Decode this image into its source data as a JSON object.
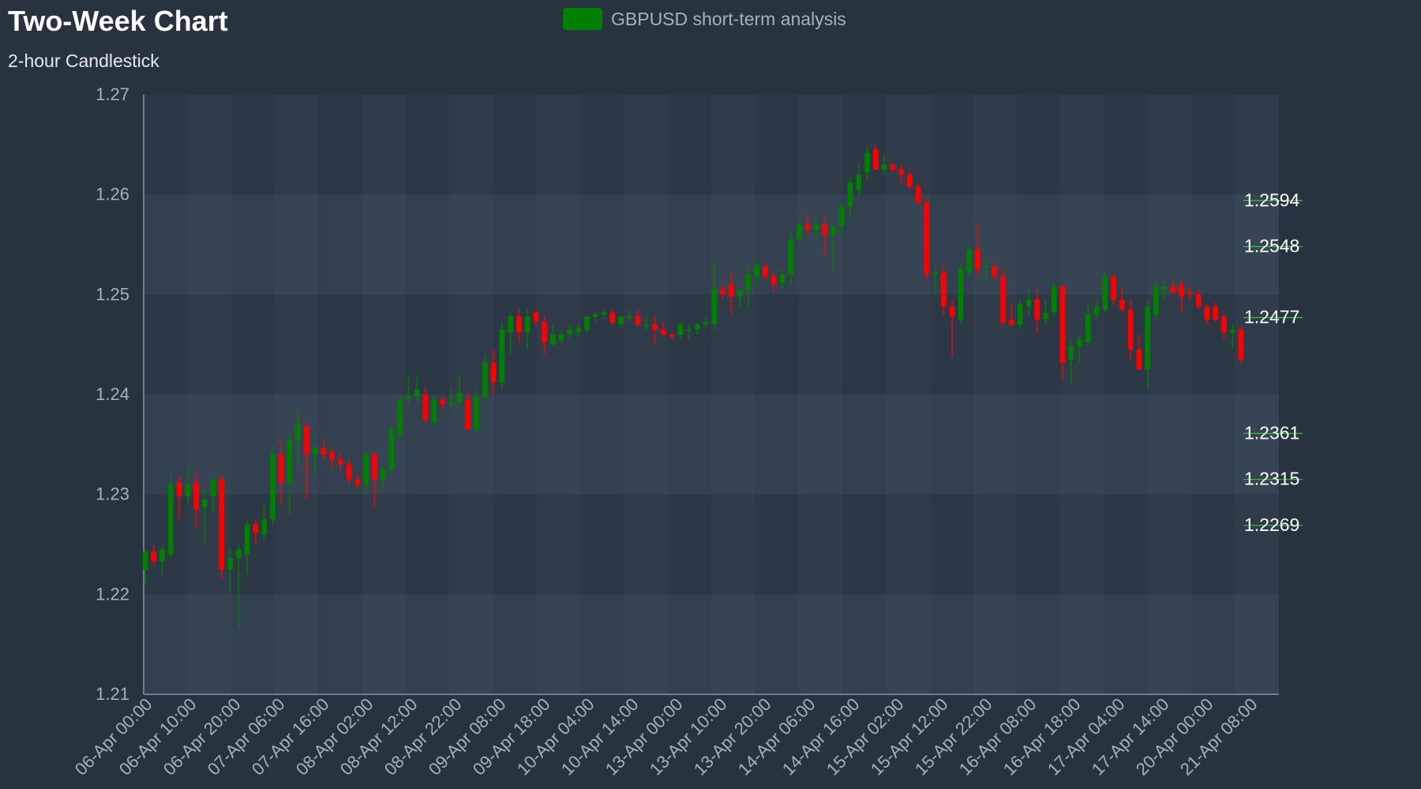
{
  "chart_data": {
    "type": "candlestick",
    "title": "Two-Week Chart",
    "subtitle": "2-hour Candlestick",
    "series_name": "GBPUSD short-term analysis",
    "ylim": [
      1.21,
      1.27
    ],
    "y_ticks": [
      "1.21",
      "1.22",
      "1.23",
      "1.24",
      "1.25",
      "1.26",
      "1.27"
    ],
    "x_tick_labels": [
      "06-Apr 00:00",
      "06-Apr 10:00",
      "06-Apr 20:00",
      "07-Apr 06:00",
      "07-Apr 16:00",
      "08-Apr 02:00",
      "08-Apr 12:00",
      "08-Apr 22:00",
      "09-Apr 08:00",
      "09-Apr 18:00",
      "10-Apr 04:00",
      "10-Apr 14:00",
      "13-Apr 00:00",
      "13-Apr 10:00",
      "13-Apr 20:00",
      "14-Apr 06:00",
      "14-Apr 16:00",
      "15-Apr 02:00",
      "15-Apr 12:00",
      "15-Apr 22:00",
      "16-Apr 08:00",
      "16-Apr 18:00",
      "17-Apr 04:00",
      "17-Apr 14:00",
      "20-Apr 00:00",
      "21-Apr 08:00"
    ],
    "levels": [
      {
        "label": "1.2594",
        "value": 1.2594
      },
      {
        "label": "1.2548",
        "value": 1.2548
      },
      {
        "label": "1.2477",
        "value": 1.2477
      },
      {
        "label": "1.2361",
        "value": 1.2361
      },
      {
        "label": "1.2315",
        "value": 1.2315
      },
      {
        "label": "1.2269",
        "value": 1.2269
      }
    ],
    "ohlc": [
      [
        1.2225,
        1.2245,
        1.221,
        1.2243
      ],
      [
        1.2243,
        1.225,
        1.2228,
        1.2233
      ],
      [
        1.2233,
        1.2248,
        1.2218,
        1.2245
      ],
      [
        1.224,
        1.232,
        1.2236,
        1.231
      ],
      [
        1.2312,
        1.2318,
        1.2275,
        1.2298
      ],
      [
        1.2298,
        1.2325,
        1.229,
        1.231
      ],
      [
        1.2312,
        1.2322,
        1.2265,
        1.2285
      ],
      [
        1.2287,
        1.2305,
        1.225,
        1.2295
      ],
      [
        1.2298,
        1.2318,
        1.228,
        1.2315
      ],
      [
        1.2315,
        1.232,
        1.2215,
        1.2225
      ],
      [
        1.2225,
        1.2245,
        1.22,
        1.2236
      ],
      [
        1.2236,
        1.225,
        1.2165,
        1.2245
      ],
      [
        1.224,
        1.2275,
        1.222,
        1.227
      ],
      [
        1.227,
        1.2275,
        1.225,
        1.2262
      ],
      [
        1.226,
        1.229,
        1.2255,
        1.2275
      ],
      [
        1.2275,
        1.235,
        1.2268,
        1.234
      ],
      [
        1.234,
        1.2352,
        1.229,
        1.2312
      ],
      [
        1.2312,
        1.236,
        1.228,
        1.2355
      ],
      [
        1.2355,
        1.2385,
        1.233,
        1.237
      ],
      [
        1.2368,
        1.2372,
        1.2295,
        1.234
      ],
      [
        1.234,
        1.2348,
        1.232,
        1.2347
      ],
      [
        1.2346,
        1.2355,
        1.2335,
        1.234
      ],
      [
        1.2342,
        1.2348,
        1.2325,
        1.2335
      ],
      [
        1.2335,
        1.2342,
        1.2322,
        1.233
      ],
      [
        1.233,
        1.2335,
        1.231,
        1.2315
      ],
      [
        1.2315,
        1.232,
        1.2305,
        1.231
      ],
      [
        1.231,
        1.2342,
        1.23,
        1.234
      ],
      [
        1.234,
        1.2343,
        1.2288,
        1.2315
      ],
      [
        1.2315,
        1.233,
        1.2305,
        1.2325
      ],
      [
        1.2325,
        1.237,
        1.232,
        1.2365
      ],
      [
        1.236,
        1.2398,
        1.2355,
        1.2395
      ],
      [
        1.2395,
        1.242,
        1.239,
        1.2398
      ],
      [
        1.2398,
        1.242,
        1.2392,
        1.2405
      ],
      [
        1.24,
        1.2408,
        1.237,
        1.2375
      ],
      [
        1.2372,
        1.2398,
        1.237,
        1.2395
      ],
      [
        1.2395,
        1.2398,
        1.2385,
        1.239
      ],
      [
        1.239,
        1.2405,
        1.2388,
        1.2392
      ],
      [
        1.2392,
        1.242,
        1.2385,
        1.2402
      ],
      [
        1.2395,
        1.2402,
        1.2365,
        1.2365
      ],
      [
        1.2365,
        1.2405,
        1.2362,
        1.2398
      ],
      [
        1.2398,
        1.244,
        1.2395,
        1.2432
      ],
      [
        1.2432,
        1.2445,
        1.24,
        1.2412
      ],
      [
        1.2412,
        1.2472,
        1.2405,
        1.2465
      ],
      [
        1.2462,
        1.2482,
        1.244,
        1.2478
      ],
      [
        1.2478,
        1.2485,
        1.2452,
        1.2462
      ],
      [
        1.2462,
        1.2485,
        1.2445,
        1.2478
      ],
      [
        1.2482,
        1.2485,
        1.2468,
        1.2473
      ],
      [
        1.2473,
        1.2478,
        1.244,
        1.2452
      ],
      [
        1.245,
        1.247,
        1.2448,
        1.246
      ],
      [
        1.2455,
        1.2465,
        1.245,
        1.246
      ],
      [
        1.246,
        1.247,
        1.2455,
        1.2465
      ],
      [
        1.2462,
        1.247,
        1.2458,
        1.2467
      ],
      [
        1.2465,
        1.2478,
        1.2462,
        1.2478
      ],
      [
        1.2478,
        1.2482,
        1.2472,
        1.248
      ],
      [
        1.248,
        1.2485,
        1.2475,
        1.2482
      ],
      [
        1.2482,
        1.2485,
        1.247,
        1.2472
      ],
      [
        1.247,
        1.2478,
        1.2468,
        1.2478
      ],
      [
        1.2478,
        1.2485,
        1.2472,
        1.2478
      ],
      [
        1.2478,
        1.2485,
        1.2468,
        1.247
      ],
      [
        1.247,
        1.2478,
        1.2465,
        1.247
      ],
      [
        1.247,
        1.2478,
        1.245,
        1.2465
      ],
      [
        1.2465,
        1.2472,
        1.2458,
        1.246
      ],
      [
        1.246,
        1.2462,
        1.2455,
        1.2458
      ],
      [
        1.246,
        1.2472,
        1.2455,
        1.247
      ],
      [
        1.2465,
        1.247,
        1.2455,
        1.2465
      ],
      [
        1.2465,
        1.2472,
        1.246,
        1.247
      ],
      [
        1.247,
        1.2478,
        1.2465,
        1.2472
      ],
      [
        1.247,
        1.2535,
        1.2465,
        1.2505
      ],
      [
        1.2505,
        1.251,
        1.2495,
        1.25
      ],
      [
        1.251,
        1.2522,
        1.248,
        1.2498
      ],
      [
        1.2498,
        1.2505,
        1.2485,
        1.2505
      ],
      [
        1.2505,
        1.2528,
        1.2488,
        1.252
      ],
      [
        1.2518,
        1.2532,
        1.251,
        1.253
      ],
      [
        1.2528,
        1.2532,
        1.2515,
        1.2518
      ],
      [
        1.2518,
        1.2522,
        1.2502,
        1.251
      ],
      [
        1.2512,
        1.2525,
        1.2505,
        1.252
      ],
      [
        1.252,
        1.2562,
        1.251,
        1.2555
      ],
      [
        1.2555,
        1.2575,
        1.255,
        1.257
      ],
      [
        1.257,
        1.258,
        1.256,
        1.2565
      ],
      [
        1.2565,
        1.2575,
        1.2555,
        1.257
      ],
      [
        1.257,
        1.2578,
        1.254,
        1.256
      ],
      [
        1.256,
        1.257,
        1.2525,
        1.2568
      ],
      [
        1.2568,
        1.2592,
        1.256,
        1.2588
      ],
      [
        1.2588,
        1.2618,
        1.258,
        1.2612
      ],
      [
        1.2605,
        1.263,
        1.26,
        1.262
      ],
      [
        1.2622,
        1.2648,
        1.2615,
        1.2642
      ],
      [
        1.2645,
        1.265,
        1.2625,
        1.2625
      ],
      [
        1.2625,
        1.264,
        1.262,
        1.263
      ],
      [
        1.263,
        1.2632,
        1.2622,
        1.2625
      ],
      [
        1.2625,
        1.263,
        1.261,
        1.262
      ],
      [
        1.262,
        1.2625,
        1.2605,
        1.2608
      ],
      [
        1.2608,
        1.2612,
        1.259,
        1.2592
      ],
      [
        1.2592,
        1.2598,
        1.2515,
        1.252
      ],
      [
        1.252,
        1.253,
        1.25,
        1.2522
      ],
      [
        1.2522,
        1.253,
        1.248,
        1.2488
      ],
      [
        1.2488,
        1.2495,
        1.2438,
        1.2478
      ],
      [
        1.2475,
        1.2532,
        1.247,
        1.2525
      ],
      [
        1.2522,
        1.255,
        1.2518,
        1.2545
      ],
      [
        1.2545,
        1.257,
        1.252,
        1.2525
      ],
      [
        1.2528,
        1.2535,
        1.2515,
        1.2528
      ],
      [
        1.2528,
        1.2532,
        1.2515,
        1.2518
      ],
      [
        1.2518,
        1.2525,
        1.2468,
        1.2472
      ],
      [
        1.2475,
        1.249,
        1.2468,
        1.247
      ],
      [
        1.247,
        1.2495,
        1.2465,
        1.249
      ],
      [
        1.2488,
        1.2505,
        1.2478,
        1.2495
      ],
      [
        1.2495,
        1.2505,
        1.2462,
        1.2475
      ],
      [
        1.2475,
        1.2495,
        1.247,
        1.2482
      ],
      [
        1.2482,
        1.2512,
        1.2478,
        1.2508
      ],
      [
        1.2508,
        1.251,
        1.2415,
        1.2432
      ],
      [
        1.2435,
        1.2455,
        1.241,
        1.2448
      ],
      [
        1.2448,
        1.246,
        1.2432,
        1.2455
      ],
      [
        1.2452,
        1.2492,
        1.2448,
        1.248
      ],
      [
        1.248,
        1.2495,
        1.2475,
        1.2488
      ],
      [
        1.2485,
        1.2522,
        1.2482,
        1.2518
      ],
      [
        1.2518,
        1.252,
        1.249,
        1.2495
      ],
      [
        1.2495,
        1.2508,
        1.2482,
        1.2485
      ],
      [
        1.2485,
        1.2495,
        1.2435,
        1.2445
      ],
      [
        1.2445,
        1.246,
        1.2425,
        1.2425
      ],
      [
        1.2425,
        1.2495,
        1.2405,
        1.2488
      ],
      [
        1.248,
        1.2515,
        1.2475,
        1.2508
      ],
      [
        1.2505,
        1.2515,
        1.2495,
        1.2508
      ],
      [
        1.2508,
        1.2515,
        1.25,
        1.2502
      ],
      [
        1.251,
        1.2515,
        1.2482,
        1.2498
      ],
      [
        1.2502,
        1.2508,
        1.2495,
        1.25
      ],
      [
        1.25,
        1.2505,
        1.2485,
        1.2488
      ],
      [
        1.2488,
        1.249,
        1.247,
        1.2475
      ],
      [
        1.2488,
        1.2492,
        1.2472,
        1.2475
      ],
      [
        1.2478,
        1.2482,
        1.2455,
        1.2462
      ],
      [
        1.2462,
        1.247,
        1.2445,
        1.2465
      ],
      [
        1.2465,
        1.2468,
        1.2432,
        1.2435
      ]
    ]
  },
  "colors": {
    "up": "#008000",
    "down": "#ff0000",
    "background": "#283340",
    "text": "#a9b0b8",
    "level_line": "#32c832"
  }
}
